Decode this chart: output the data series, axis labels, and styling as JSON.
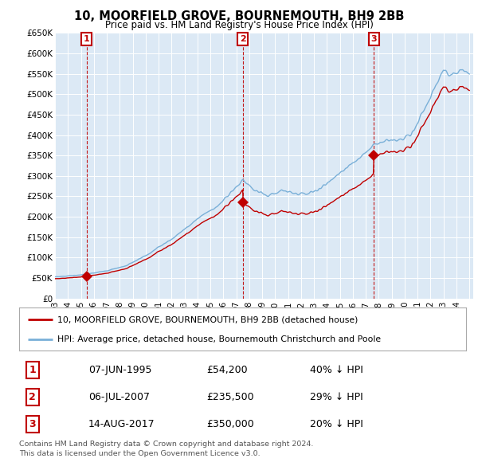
{
  "title": "10, MOORFIELD GROVE, BOURNEMOUTH, BH9 2BB",
  "subtitle": "Price paid vs. HM Land Registry's House Price Index (HPI)",
  "ylim": [
    0,
    650000
  ],
  "yticks": [
    0,
    50000,
    100000,
    150000,
    200000,
    250000,
    300000,
    350000,
    400000,
    450000,
    500000,
    550000,
    600000,
    650000
  ],
  "ytick_labels": [
    "£0",
    "£50K",
    "£100K",
    "£150K",
    "£200K",
    "£250K",
    "£300K",
    "£350K",
    "£400K",
    "£450K",
    "£500K",
    "£550K",
    "£600K",
    "£650K"
  ],
  "hpi_color": "#7ab0d8",
  "price_color": "#c00000",
  "marker_color": "#c00000",
  "sale_dates_float": [
    1995.44,
    2007.51,
    2017.62
  ],
  "sale_prices": [
    54200,
    235500,
    350000
  ],
  "sale_labels": [
    "1",
    "2",
    "3"
  ],
  "legend_label_price": "10, MOORFIELD GROVE, BOURNEMOUTH, BH9 2BB (detached house)",
  "legend_label_hpi": "HPI: Average price, detached house, Bournemouth Christchurch and Poole",
  "table_rows": [
    [
      "1",
      "07-JUN-1995",
      "£54,200",
      "40% ↓ HPI"
    ],
    [
      "2",
      "06-JUL-2007",
      "£235,500",
      "29% ↓ HPI"
    ],
    [
      "3",
      "14-AUG-2017",
      "£350,000",
      "20% ↓ HPI"
    ]
  ],
  "footnote1": "Contains HM Land Registry data © Crown copyright and database right 2024.",
  "footnote2": "This data is licensed under the Open Government Licence v3.0.",
  "background_plot": "#dce9f5",
  "background_fig": "#ffffff",
  "grid_color": "#ffffff"
}
